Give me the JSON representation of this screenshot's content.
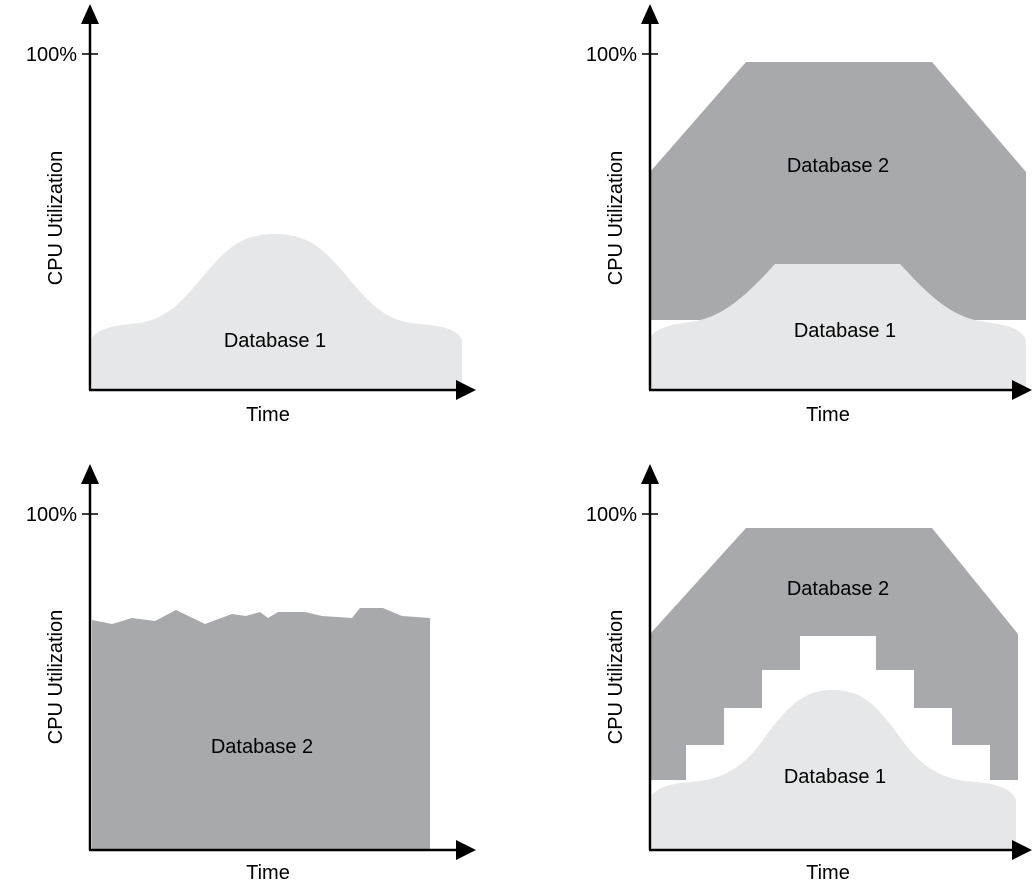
{
  "chart_data": [
    {
      "type": "area",
      "ylabel": "CPU Utilization",
      "xlabel": "Time",
      "y_tick_label": "100%",
      "series": [
        {
          "name": "Database 1",
          "color": "#e6e7e8"
        }
      ]
    },
    {
      "type": "area",
      "ylabel": "CPU Utilization",
      "xlabel": "Time",
      "y_tick_label": "100%",
      "stacked": true,
      "series": [
        {
          "name": "Database 1",
          "color": "#e6e7e8"
        },
        {
          "name": "Database 2",
          "color": "#a7a9ac"
        }
      ]
    },
    {
      "type": "area",
      "ylabel": "CPU Utilization",
      "xlabel": "Time",
      "y_tick_label": "100%",
      "series": [
        {
          "name": "Database 2",
          "color": "#a7a9ac"
        }
      ]
    },
    {
      "type": "area",
      "ylabel": "CPU Utilization",
      "xlabel": "Time",
      "y_tick_label": "100%",
      "stacked": true,
      "series": [
        {
          "name": "Database 1",
          "color": "#e6e7e8"
        },
        {
          "name": "Database 2",
          "color": "#a7a9ac"
        }
      ]
    }
  ]
}
